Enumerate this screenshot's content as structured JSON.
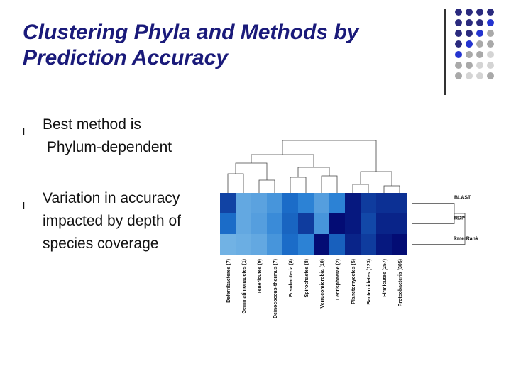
{
  "slide": {
    "title": "Clustering Phyla and Methods by Prediction Accuracy",
    "bullets": [
      "Best method is\n Phylum-dependent",
      "Variation in accuracy impacted by depth of species coverage"
    ],
    "bullet_glyph": "l"
  },
  "decoration": {
    "dot_colors": {
      "navy": "#2a2a7e",
      "blue": "#2434d0",
      "gray": "#a9a9a9",
      "light": "#d4d4d4"
    },
    "dot_pattern": [
      [
        "navy",
        "navy",
        "navy",
        "navy"
      ],
      [
        "navy",
        "navy",
        "navy",
        "blue"
      ],
      [
        "navy",
        "navy",
        "blue",
        "gray"
      ],
      [
        "navy",
        "blue",
        "gray",
        "gray"
      ],
      [
        "blue",
        "gray",
        "gray",
        "light"
      ],
      [
        "gray",
        "gray",
        "light",
        "light"
      ],
      [
        "gray",
        "light",
        "light",
        "gray"
      ]
    ]
  },
  "chart_data": {
    "type": "heatmap",
    "rows": [
      "BLAST",
      "RDP",
      "kmerRank"
    ],
    "columns": [
      "Deferribacteres (7)",
      "Gemmatimonadetes (1)",
      "Tenericutes (9)",
      "Deinococcus-thermus (7)",
      "Fusobacteria (8)",
      "Spirochaetes (8)",
      "Verrucomicrobia (10)",
      "Lentisphaerae (2)",
      "Planctomycetes (5)",
      "Bacteroidetes (123)",
      "Firmicutes (257)",
      "Proteobacteria (305)"
    ],
    "values": [
      [
        0.72,
        0.25,
        0.28,
        0.35,
        0.55,
        0.45,
        0.3,
        0.45,
        0.9,
        0.75,
        0.8,
        0.8
      ],
      [
        0.55,
        0.25,
        0.3,
        0.4,
        0.58,
        0.75,
        0.35,
        0.95,
        0.9,
        0.7,
        0.85,
        0.85
      ],
      [
        0.2,
        0.22,
        0.25,
        0.35,
        0.55,
        0.45,
        0.95,
        0.6,
        0.85,
        0.75,
        0.9,
        0.95
      ]
    ],
    "color_low": "#a8d8f0",
    "color_high": "#00006a",
    "column_dendrogram": true,
    "row_dendrogram": true
  }
}
